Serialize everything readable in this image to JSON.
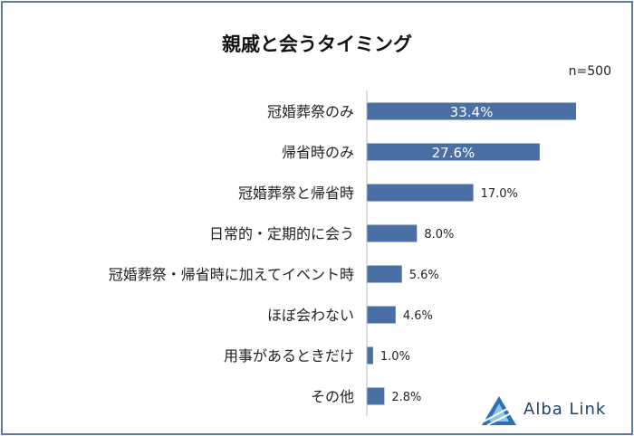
{
  "title": "親戚と会うタイミング",
  "sample_size": "n=500",
  "brand": {
    "name": "Alba Link"
  },
  "colors": {
    "bar": "#4a6fa5",
    "frame": "#5a7ab0",
    "brand": "#1f3f6f"
  },
  "chart_data": {
    "type": "bar",
    "orientation": "horizontal",
    "unit": "%",
    "categories": [
      "冠婚葬祭のみ",
      "帰省時のみ",
      "冠婚葬祭と帰省時",
      "日常的・定期的に会う",
      "冠婚葬祭・帰省時に加えてイベント時",
      "ほぼ会わない",
      "用事があるときだけ",
      "その他"
    ],
    "values": [
      33.4,
      27.6,
      17.0,
      8.0,
      5.6,
      4.6,
      1.0,
      2.8
    ],
    "labels": [
      "33.4%",
      "27.6%",
      "17.0%",
      "8.0%",
      "5.6%",
      "4.6%",
      "1.0%",
      "2.8%"
    ],
    "xlim": [
      0,
      35
    ],
    "grid": false,
    "legend": "none"
  }
}
